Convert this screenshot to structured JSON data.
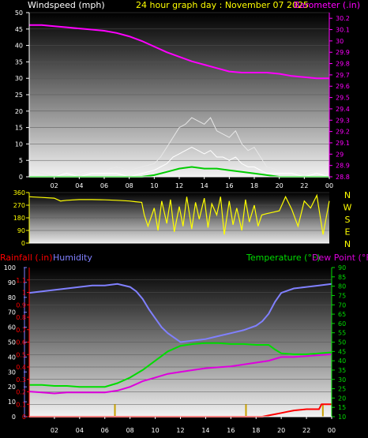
{
  "header": {
    "left_label": "Windspeed (mph)",
    "title": "24 hour graph day : November 07 2025",
    "right_label": "Barometer (.in)"
  },
  "lower_header": {
    "rainfall_label": "Rainfall (.in)",
    "humidity_label": "Humidity",
    "temperature_label": "Temperature (°F)",
    "dewpoint_label": "Dew Point (°F)"
  },
  "colors": {
    "wind": "#ffffff",
    "gust": "#e8e8e8",
    "avg_wind": "#00cc00",
    "barometer": "#ff00ff",
    "direction": "#ffff00",
    "rainfall": "#ff0000",
    "humidity": "#8080ff",
    "temperature": "#00dd00",
    "dewpoint": "#dd00dd",
    "rain_tick": "#c8a000",
    "title": "#ffff00",
    "axis_text": "#ffffff"
  },
  "chart_data": [
    {
      "type": "line",
      "name": "wind-barometer",
      "x_ticks": [
        "02",
        "04",
        "06",
        "08",
        "10",
        "12",
        "14",
        "16",
        "18",
        "20",
        "22",
        "00"
      ],
      "ylim_left": [
        0,
        50
      ],
      "yticks_left": [
        0,
        5,
        10,
        15,
        20,
        25,
        30,
        35,
        40,
        45,
        50
      ],
      "ylim_right": [
        28.8,
        30.25
      ],
      "yticks_right": [
        "28.8",
        "28.9",
        "29",
        "29.1",
        "29.2",
        "29.3",
        "29.4",
        "29.5",
        "29.6",
        "29.7",
        "29.8",
        "29.9",
        "30",
        "30.1",
        "30.2"
      ],
      "series": [
        {
          "key": "barometer",
          "axis": "right",
          "x": [
            0,
            1,
            2,
            3,
            4,
            5,
            6,
            7,
            8,
            9,
            10,
            11,
            12,
            13,
            14,
            15,
            16,
            17,
            18,
            19,
            20,
            21,
            22,
            23,
            24
          ],
          "values": [
            30.14,
            30.14,
            30.13,
            30.12,
            30.11,
            30.1,
            30.09,
            30.07,
            30.04,
            30.0,
            29.95,
            29.9,
            29.86,
            29.82,
            29.79,
            29.76,
            29.73,
            29.72,
            29.72,
            29.72,
            29.71,
            29.69,
            29.68,
            29.67,
            29.67
          ]
        },
        {
          "key": "gust",
          "axis": "left",
          "x": [
            0,
            1,
            2,
            3,
            4,
            5,
            6,
            7,
            8,
            9,
            10,
            10.5,
            11,
            11.5,
            12,
            12.5,
            13,
            13.5,
            14,
            14.5,
            15,
            15.5,
            16,
            16.5,
            17,
            17.5,
            18,
            18.5,
            19,
            20,
            21,
            22,
            23,
            24
          ],
          "values": [
            2,
            1,
            0,
            2,
            1,
            2,
            2,
            3,
            2,
            3,
            4,
            6,
            9,
            12,
            15,
            16,
            18,
            17,
            16,
            18,
            14,
            13,
            12,
            14,
            10,
            8,
            9,
            6,
            3,
            2,
            2,
            1,
            2,
            2
          ]
        },
        {
          "key": "wind",
          "axis": "left",
          "x": [
            0,
            1,
            2,
            3,
            4,
            5,
            6,
            7,
            8,
            9,
            10,
            10.5,
            11,
            11.5,
            12,
            12.5,
            13,
            13.5,
            14,
            14.5,
            15,
            15.5,
            16,
            16.5,
            17,
            17.5,
            18,
            18.5,
            19,
            20,
            21,
            22,
            23,
            24
          ],
          "values": [
            0,
            0,
            0,
            1,
            0,
            1,
            1,
            1,
            0,
            1,
            2,
            3,
            4,
            6,
            7,
            8,
            9,
            8,
            7,
            8,
            6,
            6,
            5,
            6,
            4,
            3,
            3,
            2,
            1,
            1,
            1,
            0,
            1,
            0
          ]
        },
        {
          "key": "avg_wind",
          "axis": "left",
          "x": [
            0,
            2,
            4,
            6,
            8,
            9,
            10,
            11,
            12,
            13,
            14,
            15,
            16,
            17,
            18,
            19,
            20,
            22,
            24
          ],
          "values": [
            0,
            0,
            0,
            0,
            0,
            0,
            0.5,
            1.5,
            2.5,
            3,
            2.5,
            2.5,
            2,
            1.5,
            1,
            0.5,
            0,
            0,
            0
          ]
        }
      ]
    },
    {
      "type": "line",
      "name": "wind-direction",
      "x_ticks": [
        "02",
        "04",
        "06",
        "08",
        "10",
        "12",
        "14",
        "16",
        "18",
        "20",
        "22",
        "00"
      ],
      "ylim": [
        0,
        360
      ],
      "yticks": [
        0,
        90,
        180,
        270,
        360
      ],
      "direction_labels": [
        "N",
        "W",
        "S",
        "E",
        "N"
      ],
      "series": [
        {
          "key": "direction",
          "x": [
            0,
            1,
            2,
            2.5,
            3,
            4,
            5,
            6,
            7,
            8,
            8.5,
            9,
            9.2,
            9.5,
            10,
            10.3,
            10.6,
            11,
            11.3,
            11.6,
            12,
            12.3,
            12.6,
            13,
            13.3,
            13.6,
            14,
            14.3,
            14.6,
            15,
            15.3,
            15.6,
            16,
            16.3,
            16.6,
            17,
            17.3,
            17.6,
            18,
            18.3,
            18.6,
            19,
            19.5,
            20,
            20.5,
            21,
            21.5,
            22,
            22.5,
            23,
            23.5,
            24
          ],
          "values": [
            330,
            325,
            320,
            300,
            305,
            310,
            310,
            308,
            305,
            300,
            295,
            290,
            200,
            120,
            250,
            90,
            300,
            140,
            310,
            80,
            260,
            120,
            330,
            100,
            290,
            170,
            320,
            110,
            280,
            200,
            330,
            60,
            300,
            130,
            250,
            90,
            310,
            150,
            270,
            120,
            200,
            210,
            220,
            230,
            330,
            240,
            120,
            300,
            250,
            340,
            60,
            300
          ]
        }
      ]
    },
    {
      "type": "line",
      "name": "temperature-humidity-rain",
      "x_ticks": [
        "02",
        "04",
        "06",
        "08",
        "10",
        "12",
        "14",
        "16",
        "18",
        "20",
        "22",
        "00"
      ],
      "ylim_humidity": [
        0,
        100
      ],
      "yticks_humidity": [
        0,
        10,
        20,
        30,
        40,
        50,
        60,
        70,
        80,
        90,
        100
      ],
      "ylim_rain": [
        0,
        1.2
      ],
      "yticks_rain": [
        "0",
        "0.1",
        "0.2",
        "0.3",
        "0.4",
        "0.5",
        "0.6",
        "0.7",
        "0.8",
        "0.9",
        "1",
        "1.1"
      ],
      "ylim_temp": [
        10,
        90
      ],
      "yticks_temp": [
        10,
        15,
        20,
        25,
        30,
        35,
        40,
        45,
        50,
        55,
        60,
        65,
        70,
        75,
        80,
        85,
        90
      ],
      "series": [
        {
          "key": "humidity",
          "axis": "humidity",
          "x": [
            0,
            1,
            2,
            3,
            4,
            5,
            6,
            7,
            8,
            8.5,
            9,
            9.5,
            10,
            10.5,
            11,
            11.5,
            12,
            13,
            14,
            15,
            16,
            17,
            18,
            18.5,
            19,
            19.5,
            20,
            21,
            22,
            23,
            24
          ],
          "values": [
            83,
            84,
            85,
            86,
            87,
            88,
            88,
            89,
            87,
            84,
            79,
            72,
            66,
            60,
            56,
            53,
            50,
            51,
            52,
            54,
            56,
            58,
            61,
            64,
            69,
            77,
            83,
            86,
            87,
            88,
            89
          ]
        },
        {
          "key": "temperature",
          "axis": "temp",
          "x": [
            0,
            1,
            2,
            3,
            4,
            5,
            6,
            7,
            8,
            9,
            10,
            11,
            12,
            13,
            14,
            15,
            16,
            17,
            18,
            19,
            19.5,
            20,
            21,
            22,
            23,
            24
          ],
          "values": [
            27,
            27,
            26.5,
            26.5,
            26,
            26,
            26,
            28,
            31,
            35,
            40,
            45,
            48,
            49,
            49.5,
            49.5,
            49,
            49,
            48.5,
            48.5,
            46,
            44,
            43.5,
            43.5,
            44,
            44.5
          ]
        },
        {
          "key": "dewpoint",
          "axis": "temp",
          "x": [
            0,
            1,
            2,
            3,
            4,
            5,
            6,
            7,
            8,
            9,
            10,
            11,
            12,
            13,
            14,
            15,
            16,
            17,
            18,
            19,
            20,
            21,
            22,
            23,
            24
          ],
          "values": [
            23.5,
            23,
            22.5,
            23,
            23,
            23,
            23,
            24,
            26,
            29,
            31,
            33,
            34,
            35,
            36,
            36.5,
            37,
            38,
            39,
            40,
            42,
            42,
            42.5,
            43,
            43.5
          ]
        },
        {
          "key": "rainfall",
          "axis": "rain",
          "x": [
            0,
            18.5,
            19,
            19.5,
            20,
            20.5,
            21,
            22,
            23,
            23.2,
            23.5,
            23.8,
            24
          ],
          "values": [
            0,
            0,
            0.01,
            0.02,
            0.03,
            0.04,
            0.05,
            0.06,
            0.06,
            0.1,
            0.1,
            0.1,
            0.1
          ]
        }
      ],
      "rain_rate_marks": [
        {
          "x": 6.8,
          "value": 0.1
        },
        {
          "x": 17.2,
          "value": 0.1
        },
        {
          "x": 23.3,
          "value": 0.1
        }
      ]
    }
  ]
}
